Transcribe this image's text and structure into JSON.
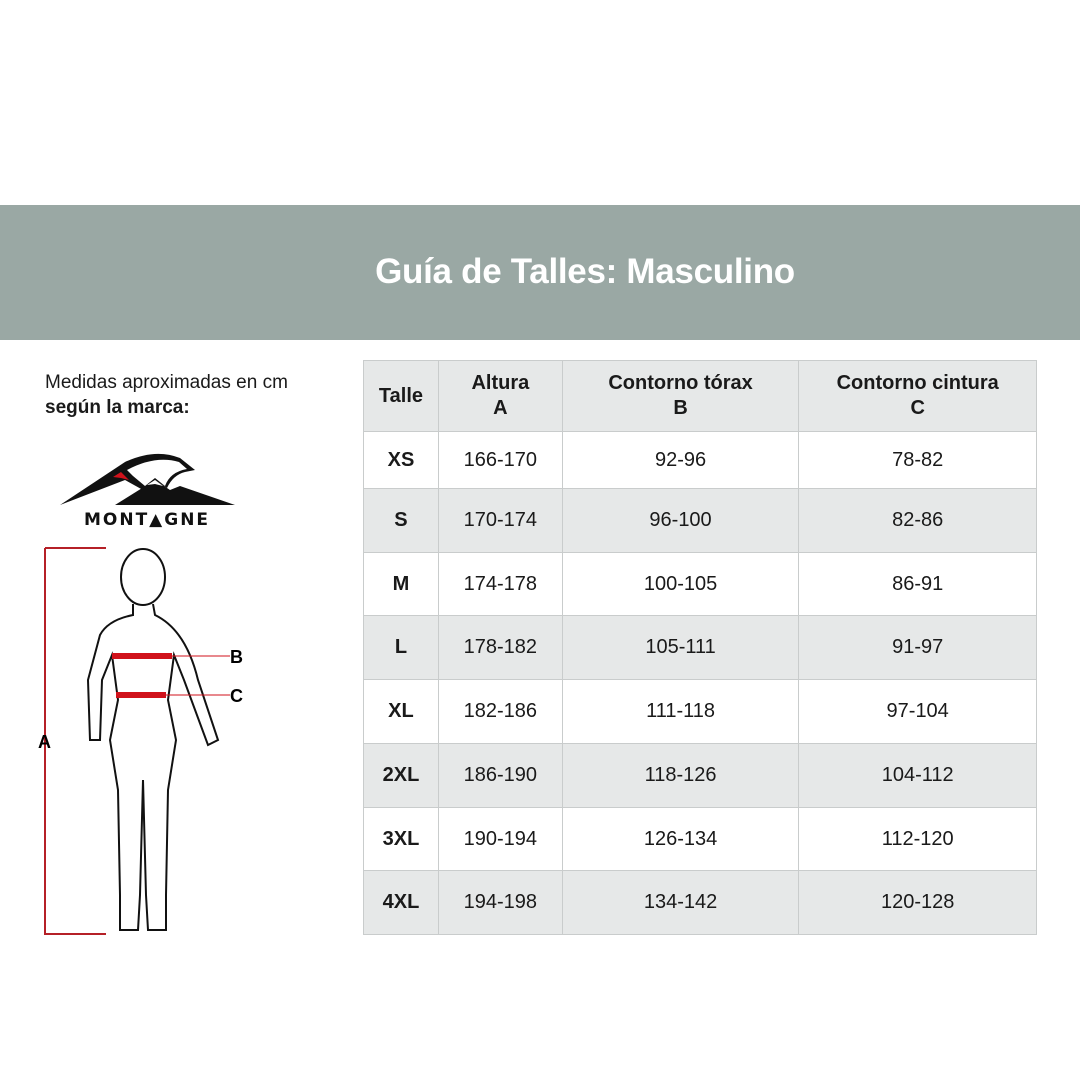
{
  "header": {
    "title": "Guía de Talles: Masculino"
  },
  "intro": {
    "line1": "Medidas aproximadas en cm",
    "line2": "según la marca:"
  },
  "brand": {
    "logo_text": "MONTAGNE"
  },
  "figure": {
    "labels": {
      "a": "A",
      "b": "B",
      "c": "C"
    },
    "accent": "#d0121b"
  },
  "colors": {
    "banner": "#9aa8a4",
    "row_alt": "#e6e8e8"
  },
  "table": {
    "headers": [
      {
        "title": "Talle",
        "sub": ""
      },
      {
        "title": "Altura",
        "sub": "A"
      },
      {
        "title": "Contorno tórax",
        "sub": "B"
      },
      {
        "title": "Contorno cintura",
        "sub": "C"
      }
    ],
    "rows": [
      [
        "XS",
        "166-170",
        "92-96",
        "78-82"
      ],
      [
        "S",
        "170-174",
        "96-100",
        "82-86"
      ],
      [
        "M",
        "174-178",
        "100-105",
        "86-91"
      ],
      [
        "L",
        "178-182",
        "105-111",
        "91-97"
      ],
      [
        "XL",
        "182-186",
        "111-118",
        "97-104"
      ],
      [
        "2XL",
        "186-190",
        "118-126",
        "104-112"
      ],
      [
        "3XL",
        "190-194",
        "126-134",
        "112-120"
      ],
      [
        "4XL",
        "194-198",
        "134-142",
        "120-128"
      ]
    ]
  }
}
